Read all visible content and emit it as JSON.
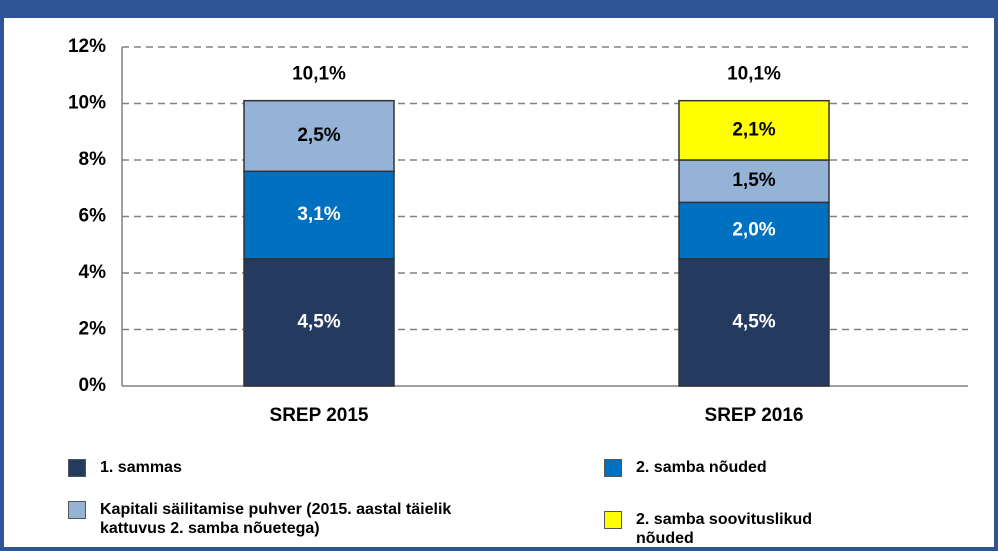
{
  "chart_data": {
    "type": "stacked_bar",
    "categories": [
      "SREP 2015",
      "SREP 2016"
    ],
    "series": [
      {
        "name": "1. sammas",
        "color": "#243a5e",
        "label_color": "#ffffff",
        "values": [
          4.5,
          4.5
        ],
        "value_labels": [
          "4,5%",
          "4,5%"
        ]
      },
      {
        "name": "2. samba nõuded",
        "color": "#0070c0",
        "label_color": "#ffffff",
        "values": [
          3.1,
          2.0
        ],
        "value_labels": [
          "3,1%",
          "2,0%"
        ]
      },
      {
        "name": "Kapitali säilitamise puhver (2015. aastal täielik kattuvus 2. samba nõuetega)",
        "color": "#95b3d7",
        "label_color": "#000000",
        "values": [
          2.5,
          1.5
        ],
        "value_labels": [
          "2,5%",
          "1,5%"
        ]
      },
      {
        "name": "2. samba soovituslikud nõuded",
        "color": "#ffff00",
        "label_color": "#000000",
        "values": [
          null,
          2.1
        ],
        "value_labels": [
          null,
          "2,1%"
        ]
      }
    ],
    "totals": [
      10.1,
      10.1
    ],
    "total_labels": [
      "10,1%",
      "10,1%"
    ],
    "ylim": [
      0,
      12
    ],
    "yticks": [
      {
        "value": 0,
        "label": "0%"
      },
      {
        "value": 2,
        "label": "2%"
      },
      {
        "value": 4,
        "label": "4%"
      },
      {
        "value": 6,
        "label": "6%"
      },
      {
        "value": 8,
        "label": "8%"
      },
      {
        "value": 10,
        "label": "10%"
      },
      {
        "value": 12,
        "label": "12%"
      }
    ],
    "grid": true
  }
}
